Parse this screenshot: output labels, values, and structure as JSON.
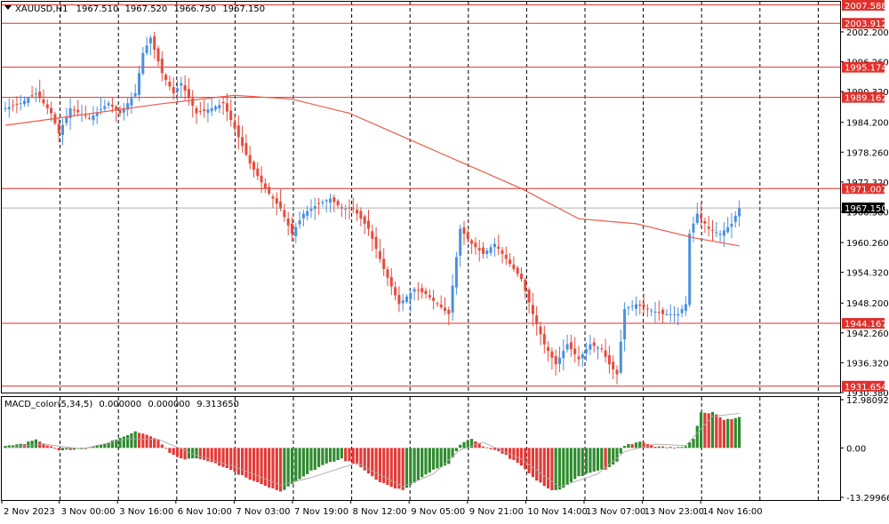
{
  "header": {
    "symbol": "XAUUSD",
    "timeframe": "H1",
    "ohlc": [
      "1967.510",
      "1967.520",
      "1966.750",
      "1967.150"
    ]
  },
  "macd_header": {
    "name": "MACD_color",
    "params": "(5,34,5)",
    "values": [
      "0.000000",
      "0.000000",
      "9.313650"
    ]
  },
  "colors": {
    "bull": "#4a90e2",
    "bear": "#e74c3c",
    "ma": "#ef5a4a",
    "level": "#e0312c",
    "hist_pos": "#2e8b2e",
    "hist_neg": "#e53935",
    "signal": "#a8a8a8",
    "grid": "#000000",
    "current": "#000000"
  },
  "chart_data": [
    {
      "type": "candlestick",
      "title": "",
      "symbol": "XAUUSD",
      "timeframe": "H1",
      "ylim": [
        1930.38,
        2008.2
      ],
      "y_ticks": [
        "2002.200",
        "1996.260",
        "1990.320",
        "1984.200",
        "1978.260",
        "1972.320",
        "1966.380",
        "1960.260",
        "1954.320",
        "1948.200",
        "1942.260",
        "1936.320",
        "1930.380"
      ],
      "x_ticks": [
        "2 Nov 2023",
        "3 Nov 00:00",
        "3 Nov 16:00",
        "6 Nov 10:00",
        "7 Nov 03:00",
        "7 Nov 19:00",
        "8 Nov 12:00",
        "9 Nov 05:00",
        "9 Nov 21:00",
        "10 Nov 14:00",
        "13 Nov 07:00",
        "13 Nov 23:00",
        "14 Nov 16:00"
      ],
      "close_path": [
        [
          0,
          1987
        ],
        [
          4,
          1988
        ],
        [
          8,
          1990
        ],
        [
          12,
          1986
        ],
        [
          14,
          1982
        ],
        [
          17,
          1987
        ],
        [
          22,
          1985
        ],
        [
          27,
          1988
        ],
        [
          30,
          1986
        ],
        [
          34,
          1990
        ],
        [
          36,
          1998
        ],
        [
          38,
          2001
        ],
        [
          41,
          1994
        ],
        [
          44,
          1990
        ],
        [
          46,
          1992
        ],
        [
          50,
          1986
        ],
        [
          54,
          1987
        ],
        [
          57,
          1988
        ],
        [
          60,
          1983
        ],
        [
          64,
          1976
        ],
        [
          68,
          1971
        ],
        [
          72,
          1967
        ],
        [
          75,
          1962
        ],
        [
          78,
          1966
        ],
        [
          82,
          1968
        ],
        [
          85,
          1969
        ],
        [
          88,
          1967
        ],
        [
          91,
          1967
        ],
        [
          95,
          1963
        ],
        [
          99,
          1955
        ],
        [
          103,
          1948
        ],
        [
          107,
          1951
        ],
        [
          110,
          1950
        ],
        [
          113,
          1948
        ],
        [
          116,
          1946
        ],
        [
          119,
          1963
        ],
        [
          122,
          1960
        ],
        [
          125,
          1958
        ],
        [
          128,
          1960
        ],
        [
          131,
          1957
        ],
        [
          135,
          1953
        ],
        [
          138,
          1946
        ],
        [
          141,
          1940
        ],
        [
          144,
          1936
        ],
        [
          147,
          1940
        ],
        [
          150,
          1937
        ],
        [
          153,
          1940
        ],
        [
          156,
          1939
        ],
        [
          158,
          1936
        ],
        [
          160,
          1934
        ],
        [
          162,
          1947
        ],
        [
          165,
          1948
        ],
        [
          168,
          1947
        ],
        [
          172,
          1946
        ],
        [
          176,
          1946
        ],
        [
          178,
          1948
        ],
        [
          179,
          1962
        ],
        [
          181,
          1966
        ],
        [
          184,
          1963
        ],
        [
          187,
          1962
        ],
        [
          190,
          1964
        ],
        [
          192,
          1967.15
        ]
      ],
      "ma": [
        [
          0,
          1983.6
        ],
        [
          40,
          1987.8
        ],
        [
          60,
          1989.6
        ],
        [
          75,
          1988.8
        ],
        [
          90,
          1986
        ],
        [
          105,
          1981
        ],
        [
          120,
          1976
        ],
        [
          135,
          1971
        ],
        [
          150,
          1965
        ],
        [
          165,
          1964
        ],
        [
          180,
          1961.2
        ],
        [
          192,
          1959.6
        ]
      ],
      "levels": [
        "2007.588",
        "2003.912",
        "1995.174",
        "1989.162",
        "1971.007",
        "1944.167",
        "1931.654"
      ],
      "current_price": "1967.150"
    },
    {
      "type": "bar",
      "title": "",
      "indicator": "MACD_color",
      "params": "(5,34,5)",
      "ylim": [
        -13.299663,
        12.980929
      ],
      "y_ticks": [
        "12.980929",
        "0.00",
        "-13.299663"
      ],
      "histogram_path": [
        [
          0,
          0.5
        ],
        [
          5,
          1.2
        ],
        [
          8,
          2.2
        ],
        [
          11,
          0.8
        ],
        [
          14,
          -0.5
        ],
        [
          17,
          -0.6
        ],
        [
          21,
          -0.2
        ],
        [
          25,
          0.9
        ],
        [
          30,
          2.6
        ],
        [
          34,
          4.6
        ],
        [
          37,
          3.4
        ],
        [
          40,
          2
        ],
        [
          43,
          -1.5
        ],
        [
          46,
          -3
        ],
        [
          50,
          -2.8
        ],
        [
          54,
          -3.8
        ],
        [
          58,
          -5.5
        ],
        [
          63,
          -8
        ],
        [
          68,
          -10.2
        ],
        [
          72,
          -11.8
        ],
        [
          76,
          -9
        ],
        [
          80,
          -6.2
        ],
        [
          84,
          -4.2
        ],
        [
          88,
          -3
        ],
        [
          92,
          -4.5
        ],
        [
          97,
          -8.6
        ],
        [
          101,
          -10.5
        ],
        [
          104,
          -11.2
        ],
        [
          107,
          -9.5
        ],
        [
          111,
          -6.5
        ],
        [
          116,
          -4.2
        ],
        [
          119,
          1
        ],
        [
          122,
          2.6
        ],
        [
          125,
          0.4
        ],
        [
          130,
          -1.4
        ],
        [
          135,
          -4.8
        ],
        [
          139,
          -8.8
        ],
        [
          143,
          -11.5
        ],
        [
          146,
          -10.8
        ],
        [
          150,
          -7.8
        ],
        [
          154,
          -6.2
        ],
        [
          157,
          -5.8
        ],
        [
          160,
          -3.6
        ],
        [
          162,
          0.6
        ],
        [
          166,
          1.6
        ],
        [
          170,
          0.5
        ],
        [
          174,
          0.2
        ],
        [
          178,
          0.4
        ],
        [
          180,
          2.5
        ],
        [
          182,
          9.5
        ],
        [
          185,
          9.5
        ],
        [
          188,
          7.6
        ],
        [
          192,
          8.2
        ]
      ],
      "signal_path": [
        [
          0,
          0
        ],
        [
          10,
          1
        ],
        [
          20,
          -0.3
        ],
        [
          32,
          2.5
        ],
        [
          40,
          2.3
        ],
        [
          50,
          -2
        ],
        [
          60,
          -5
        ],
        [
          72,
          -10
        ],
        [
          80,
          -8
        ],
        [
          92,
          -4
        ],
        [
          104,
          -10.4
        ],
        [
          112,
          -7
        ],
        [
          119,
          -0.5
        ],
        [
          125,
          1.5
        ],
        [
          135,
          -3
        ],
        [
          145,
          -10.5
        ],
        [
          155,
          -7
        ],
        [
          162,
          -1
        ],
        [
          170,
          1
        ],
        [
          178,
          0.6
        ],
        [
          185,
          8.5
        ],
        [
          192,
          9.3
        ]
      ]
    }
  ]
}
